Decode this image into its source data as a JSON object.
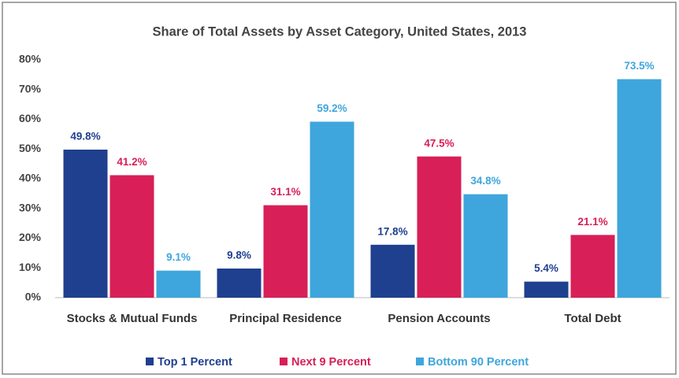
{
  "chart_data": {
    "type": "bar",
    "title": "Share of Total Assets by Asset Category, United States, 2013",
    "categories": [
      "Stocks & Mutual Funds",
      "Principal Residence",
      "Pension Accounts",
      "Total Debt"
    ],
    "series": [
      {
        "name": "Top 1 Percent",
        "color": "#1f3f8f",
        "values": [
          49.8,
          9.8,
          17.8,
          5.4
        ],
        "value_labels": [
          "49.8%",
          "9.8%",
          "17.8%",
          "5.4%"
        ]
      },
      {
        "name": "Next 9 Percent",
        "color": "#d81f57",
        "values": [
          41.2,
          31.1,
          47.5,
          21.1
        ],
        "value_labels": [
          "41.2%",
          "31.1%",
          "47.5%",
          "21.1%"
        ]
      },
      {
        "name": "Bottom 90 Percent",
        "color": "#3ea6dc",
        "values": [
          9.1,
          59.2,
          34.8,
          73.5
        ],
        "value_labels": [
          "9.1%",
          "59.2%",
          "34.8%",
          "73.5%"
        ]
      }
    ],
    "ylim": [
      0,
      80
    ],
    "yticks": [
      {
        "value": 0,
        "label": "0%"
      },
      {
        "value": 10,
        "label": "10%"
      },
      {
        "value": 20,
        "label": "20%"
      },
      {
        "value": 30,
        "label": "30%"
      },
      {
        "value": 40,
        "label": "40%"
      },
      {
        "value": 50,
        "label": "50%"
      },
      {
        "value": 60,
        "label": "60%"
      },
      {
        "value": 70,
        "label": "70%"
      },
      {
        "value": 80,
        "label": "80%"
      }
    ],
    "legend": "bottom"
  }
}
